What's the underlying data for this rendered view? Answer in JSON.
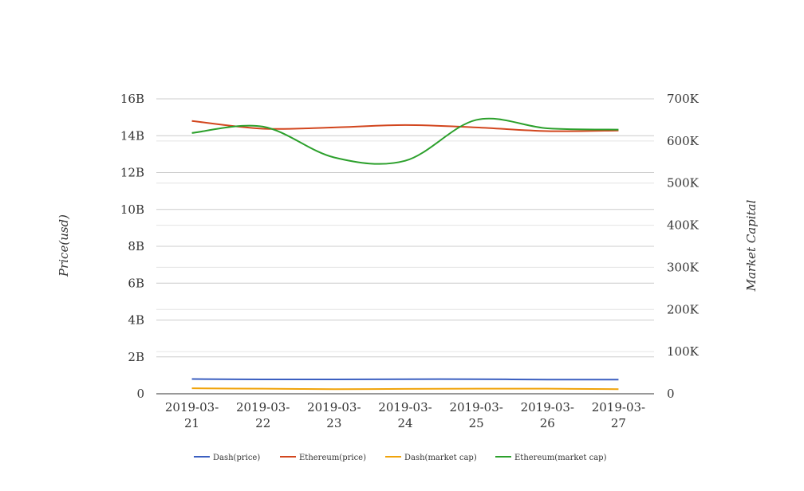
{
  "chart_data": {
    "type": "line",
    "x": [
      "2019-03-21",
      "2019-03-22",
      "2019-03-23",
      "2019-03-24",
      "2019-03-25",
      "2019-03-26",
      "2019-03-27"
    ],
    "x_tick_labels": [
      [
        "2019-03-",
        "21"
      ],
      [
        "2019-03-",
        "22"
      ],
      [
        "2019-03-",
        "23"
      ],
      [
        "2019-03-",
        "24"
      ],
      [
        "2019-03-",
        "25"
      ],
      [
        "2019-03-",
        "26"
      ],
      [
        "2019-03-",
        "27"
      ]
    ],
    "ylabel_left": "Price(usd)",
    "ylabel_right": "Market Capital",
    "y_left_ticks": [
      "0",
      "2B",
      "4B",
      "6B",
      "8B",
      "10B",
      "12B",
      "14B",
      "16B"
    ],
    "y_right_ticks": [
      "0",
      "100K",
      "200K",
      "300K",
      "400K",
      "500K",
      "600K",
      "700K"
    ],
    "ylim_left": [
      0,
      16000000000
    ],
    "ylim_right": [
      0,
      700000
    ],
    "grid": true,
    "legend_position": "bottom",
    "series": [
      {
        "name": "Dash(price)",
        "axis": "left",
        "color": "#3b5fc0",
        "values": [
          800000000,
          780000000,
          780000000,
          790000000,
          790000000,
          770000000,
          770000000
        ]
      },
      {
        "name": "Ethereum(price)",
        "axis": "left",
        "color": "#d2461e",
        "values": [
          14800000000,
          14380000000,
          14450000000,
          14580000000,
          14450000000,
          14250000000,
          14280000000
        ]
      },
      {
        "name": "Dash(market cap)",
        "axis": "right",
        "color": "#f0a30a",
        "values": [
          13000,
          12000,
          11000,
          11500,
          12000,
          12000,
          11000
        ]
      },
      {
        "name": "Ethereum(market cap)",
        "axis": "right",
        "color": "#2ca02c",
        "values": [
          619000,
          634000,
          561000,
          553000,
          650000,
          630000,
          627000
        ]
      }
    ]
  }
}
